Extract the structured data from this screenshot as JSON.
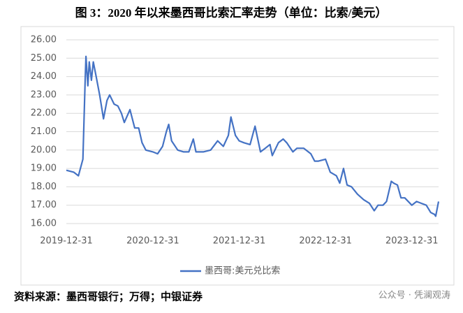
{
  "chart_data": {
    "type": "line",
    "title": "图 3：2020 年以来墨西哥比索汇率走势（单位：比索/美元）",
    "source": "资料来源：墨西哥银行；万得；中银证券",
    "watermark": "公众号 · 凭澜观涛",
    "x": [
      "2019-12-31",
      "2020-01-31",
      "2020-02-20",
      "2020-03-10",
      "2020-03-20",
      "2020-03-23",
      "2020-03-31",
      "2020-04-06",
      "2020-04-15",
      "2020-04-23",
      "2020-05-05",
      "2020-05-20",
      "2020-06-05",
      "2020-06-20",
      "2020-07-01",
      "2020-07-20",
      "2020-08-05",
      "2020-08-20",
      "2020-09-01",
      "2020-09-25",
      "2020-10-15",
      "2020-11-01",
      "2020-11-15",
      "2020-12-01",
      "2020-12-31",
      "2021-01-20",
      "2021-02-10",
      "2021-02-26",
      "2021-03-08",
      "2021-03-20",
      "2021-04-15",
      "2021-05-10",
      "2021-06-01",
      "2021-06-20",
      "2021-07-01",
      "2021-08-01",
      "2021-09-01",
      "2021-10-01",
      "2021-10-25",
      "2021-11-15",
      "2021-11-26",
      "2021-12-15",
      "2021-12-31",
      "2022-01-20",
      "2022-02-15",
      "2022-03-08",
      "2022-03-31",
      "2022-04-20",
      "2022-05-10",
      "2022-05-20",
      "2022-06-15",
      "2022-07-05",
      "2022-07-20",
      "2022-08-15",
      "2022-09-01",
      "2022-09-30",
      "2022-10-30",
      "2022-11-15",
      "2022-12-01",
      "2022-12-31",
      "2023-01-20",
      "2023-02-15",
      "2023-03-01",
      "2023-03-17",
      "2023-04-01",
      "2023-04-20",
      "2023-05-15",
      "2023-06-10",
      "2023-07-05",
      "2023-07-25",
      "2023-08-10",
      "2023-08-31",
      "2023-09-15",
      "2023-10-05",
      "2023-10-15",
      "2023-10-31",
      "2023-11-15",
      "2023-12-01",
      "2023-12-31",
      "2024-01-20",
      "2024-02-10",
      "2024-03-01",
      "2024-03-20",
      "2024-04-05",
      "2024-04-10",
      "2024-04-22"
    ],
    "series": [
      {
        "name": "墨西哥:美元兑比索",
        "color": "#4472c4",
        "values": [
          18.9,
          18.8,
          18.6,
          19.5,
          24.0,
          25.1,
          23.5,
          24.8,
          23.8,
          24.8,
          24.0,
          23.0,
          21.7,
          22.7,
          23.0,
          22.5,
          22.4,
          22.0,
          21.5,
          22.2,
          21.2,
          21.2,
          20.4,
          20.0,
          19.9,
          19.8,
          20.2,
          21.0,
          21.4,
          20.5,
          20.0,
          19.9,
          19.9,
          20.6,
          19.9,
          19.9,
          20.0,
          20.5,
          20.2,
          20.8,
          21.8,
          20.8,
          20.5,
          20.4,
          20.3,
          21.3,
          19.9,
          20.1,
          20.3,
          19.7,
          20.4,
          20.6,
          20.4,
          19.9,
          20.1,
          20.1,
          19.8,
          19.4,
          19.4,
          19.5,
          18.8,
          18.6,
          18.2,
          19.0,
          18.1,
          18.0,
          17.6,
          17.3,
          17.1,
          16.7,
          17.0,
          17.0,
          17.2,
          18.3,
          18.2,
          18.1,
          17.4,
          17.4,
          17.0,
          17.2,
          17.1,
          17.0,
          16.6,
          16.5,
          16.4,
          17.2
        ]
      }
    ],
    "xlim": [
      "2019-12-31",
      "2024-04-22"
    ],
    "xticks": [
      "2019-12-31",
      "2020-12-31",
      "2021-12-31",
      "2022-12-31",
      "2023-12-31"
    ],
    "ylim": [
      16,
      26
    ],
    "yticks": [
      {
        "value": 16,
        "label": "16.00"
      },
      {
        "value": 17,
        "label": "17.00"
      },
      {
        "value": 18,
        "label": "18.00"
      },
      {
        "value": 19,
        "label": "19.00"
      },
      {
        "value": 20,
        "label": "20.00"
      },
      {
        "value": 21,
        "label": "21.00"
      },
      {
        "value": 22,
        "label": "22.00"
      },
      {
        "value": 23,
        "label": "23.00"
      },
      {
        "value": 24,
        "label": "24.00"
      },
      {
        "value": 25,
        "label": "25.00"
      },
      {
        "value": 26,
        "label": "26.00"
      }
    ],
    "grid": true
  }
}
